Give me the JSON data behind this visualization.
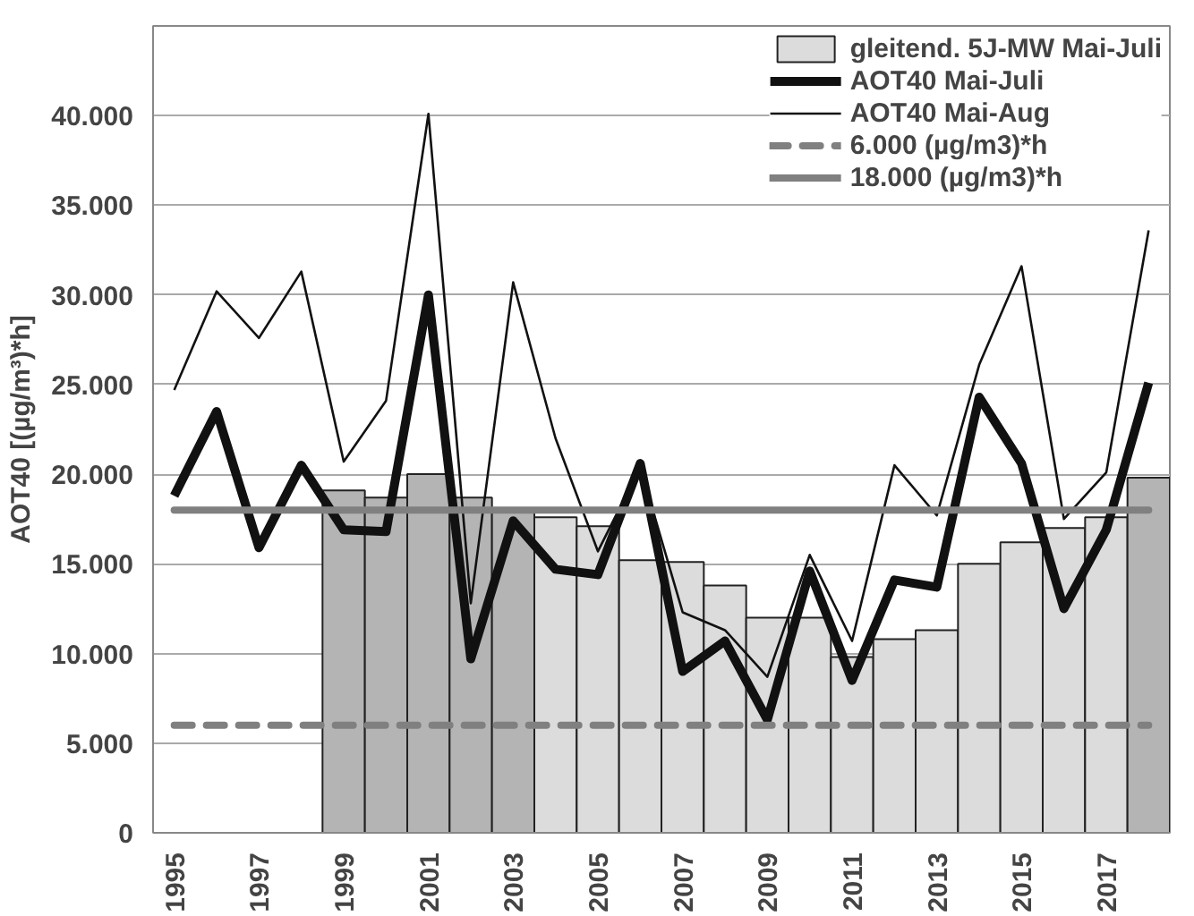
{
  "chart_data": {
    "type": "bar",
    "ylabel": "AOT40 [(µg/m³)*h]",
    "categories": [
      "1995",
      null,
      "1997",
      null,
      "1999",
      null,
      "2001",
      null,
      "2003",
      null,
      "2005",
      null,
      "2007",
      null,
      "2009",
      null,
      "2011",
      null,
      "2013",
      null,
      "2015",
      null,
      "2017",
      null
    ],
    "series": [
      {
        "name": "gleitend. 5J-MW Mai-Juli",
        "color": "#dcdcdc",
        "colors": [
          null,
          null,
          null,
          null,
          "#b4b4b4",
          "#b4b4b4",
          "#b4b4b4",
          "#b4b4b4",
          "#b4b4b4",
          "#dcdcdc",
          "#dcdcdc",
          "#dcdcdc",
          "#dcdcdc",
          "#dcdcdc",
          "#dcdcdc",
          "#dcdcdc",
          "#dcdcdc",
          "#dcdcdc",
          "#dcdcdc",
          "#dcdcdc",
          "#dcdcdc",
          "#dcdcdc",
          "#dcdcdc",
          "#b4b4b4"
        ],
        "values": [
          null,
          null,
          null,
          null,
          19100,
          18700,
          20000,
          18700,
          18000,
          17600,
          17100,
          15200,
          15100,
          13800,
          12000,
          12000,
          9800,
          10800,
          11300,
          15000,
          16200,
          17000,
          17600,
          19800
        ]
      },
      {
        "name": "AOT40 Mai-Juli",
        "type": "line",
        "color": "#111111",
        "values": [
          18800,
          23500,
          15900,
          20500,
          16900,
          16800,
          30000,
          9700,
          17400,
          14700,
          14400,
          20600,
          9000,
          10700,
          6300,
          14600,
          8500,
          14100,
          13700,
          24300,
          20600,
          12500,
          16900,
          25100
        ]
      },
      {
        "name": "AOT40 Mai-Aug",
        "type": "line",
        "color": "#111111",
        "values": [
          24700,
          30200,
          27600,
          31300,
          20700,
          24100,
          40100,
          12800,
          30700,
          22000,
          15700,
          20400,
          12300,
          11300,
          8700,
          15500,
          10700,
          20500,
          17700,
          26100,
          31600,
          17500,
          20100,
          33600
        ]
      }
    ],
    "ref_lines": [
      {
        "axis": "y",
        "value": 6000,
        "label": "6.000 (µg/m3)*h",
        "color": "#808080",
        "line_style": "dashed"
      },
      {
        "axis": "y",
        "value": 18000,
        "label": "18.000 (µg/m3)*h",
        "color": "#808080",
        "line_style": "solid"
      }
    ],
    "ylim": [
      0,
      45000
    ],
    "yticks": [
      {
        "value": 0,
        "label": "0"
      },
      {
        "value": 5000,
        "label": "5.000"
      },
      {
        "value": 10000,
        "label": "10.000"
      },
      {
        "value": 15000,
        "label": "15.000"
      },
      {
        "value": 20000,
        "label": "20.000"
      },
      {
        "value": 25000,
        "label": "25.000"
      },
      {
        "value": 30000,
        "label": "30.000"
      },
      {
        "value": 35000,
        "label": "35.000"
      },
      {
        "value": 40000,
        "label": "40.000"
      }
    ],
    "grid": "y",
    "legend": "top right"
  }
}
